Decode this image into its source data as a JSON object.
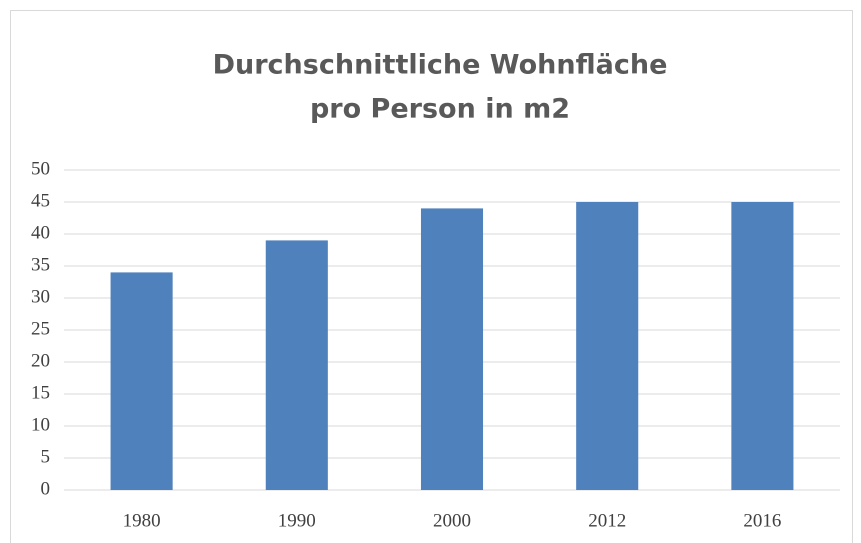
{
  "chart_data": {
    "type": "bar",
    "title": [
      "Durchschnittliche Wohnfläche",
      "pro Person in m2"
    ],
    "categories": [
      "1980",
      "1990",
      "2000",
      "2012",
      "2016"
    ],
    "values": [
      34,
      39,
      44,
      45,
      45
    ],
    "color": "#4f81bd",
    "ylim": [
      0,
      50
    ],
    "yticks": [
      0,
      5,
      10,
      15,
      20,
      25,
      30,
      35,
      40,
      45,
      50
    ],
    "grid": true
  }
}
